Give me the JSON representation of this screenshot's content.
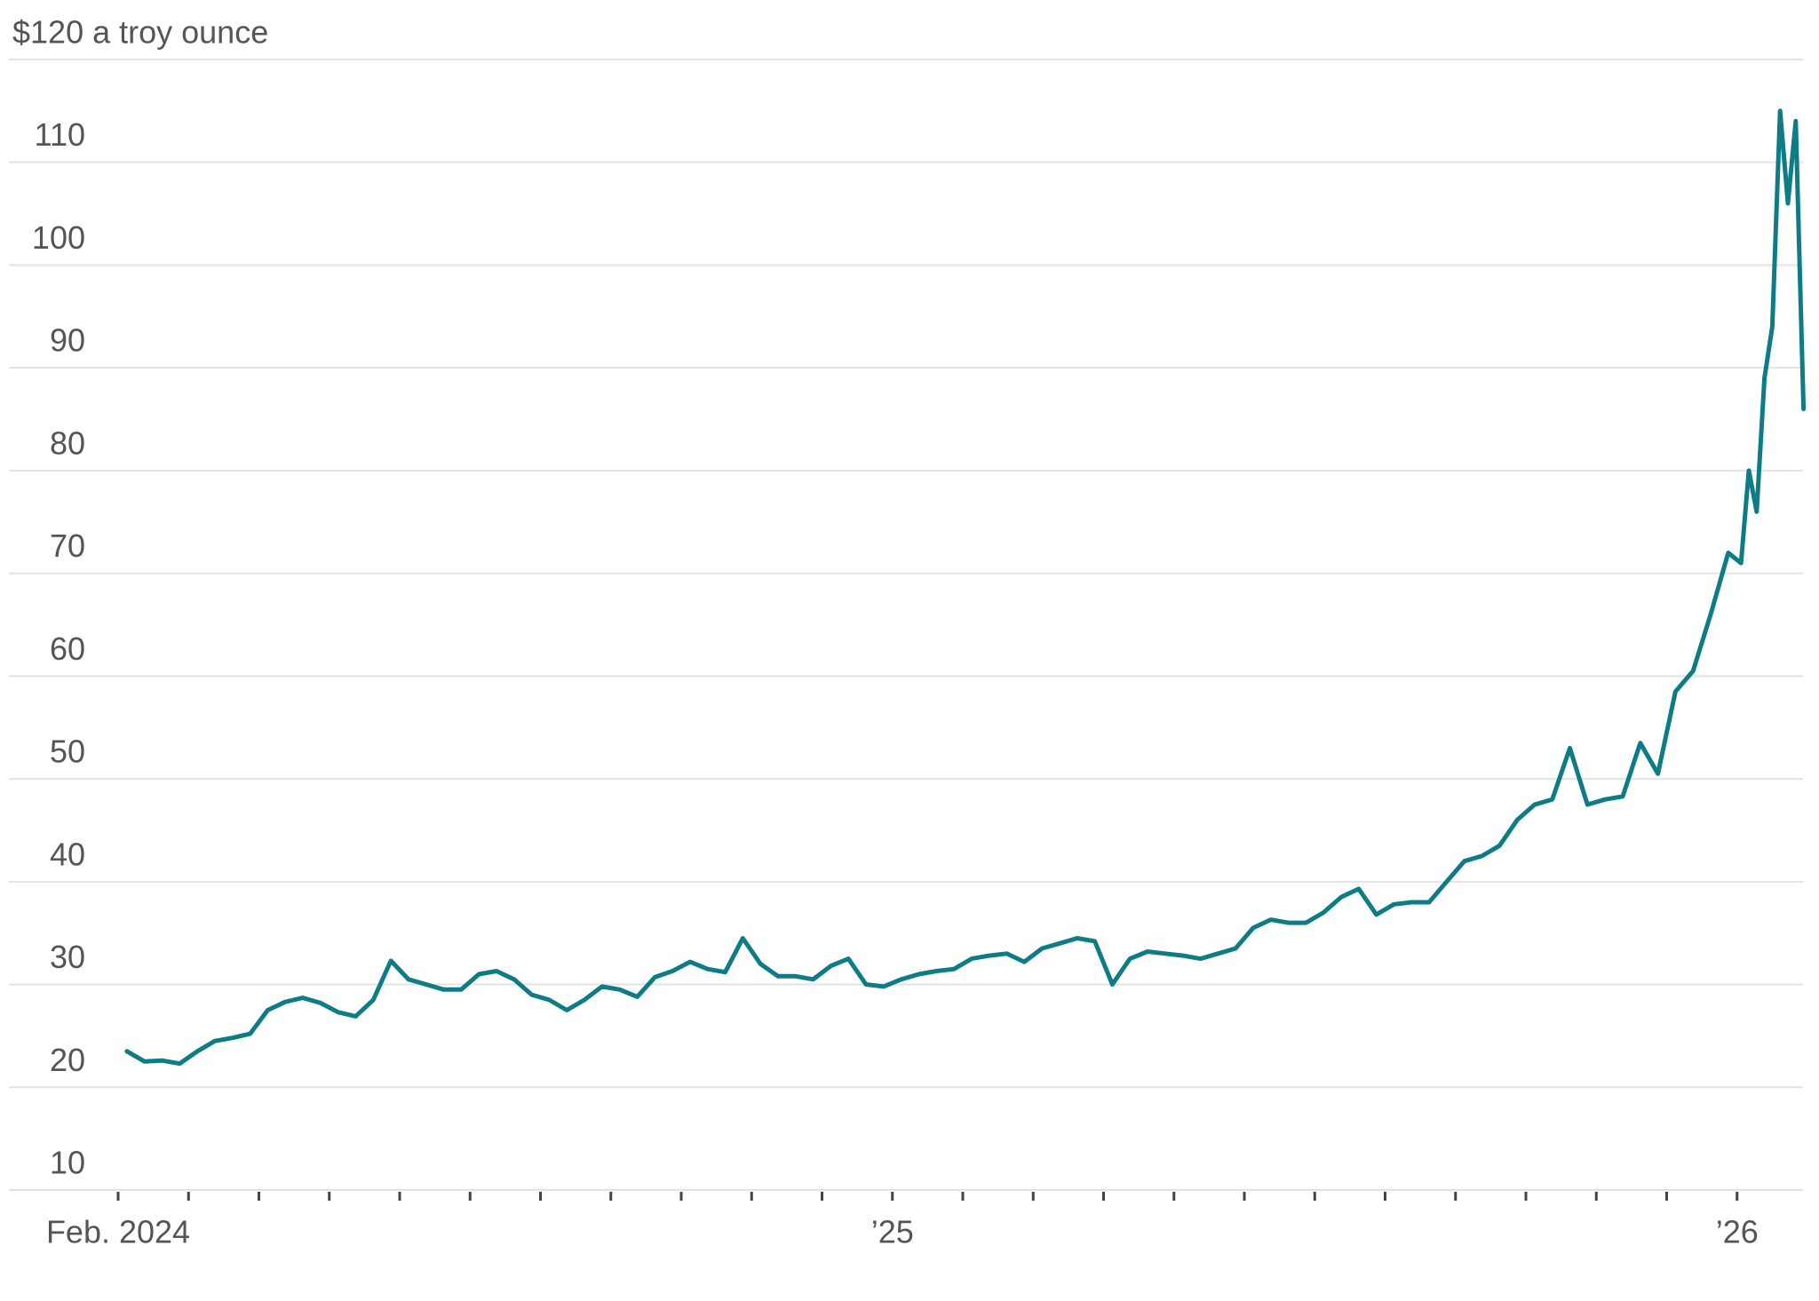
{
  "chart_data": {
    "type": "line",
    "x": [
      "2024-02",
      "2024-02",
      "2024-02",
      "2024-02",
      "2024-03",
      "2024-03",
      "2024-03",
      "2024-03",
      "2024-04",
      "2024-04",
      "2024-04",
      "2024-04",
      "2024-05",
      "2024-05",
      "2024-05",
      "2024-05",
      "2024-06",
      "2024-06",
      "2024-06",
      "2024-06",
      "2024-07",
      "2024-07",
      "2024-07",
      "2024-07",
      "2024-08",
      "2024-08",
      "2024-08",
      "2024-08",
      "2024-09",
      "2024-09",
      "2024-09",
      "2024-09",
      "2024-10",
      "2024-10",
      "2024-10",
      "2024-10",
      "2024-11",
      "2024-11",
      "2024-11",
      "2024-11",
      "2024-12",
      "2024-12",
      "2024-12",
      "2024-12",
      "2025-01",
      "2025-01",
      "2025-01",
      "2025-01",
      "2025-02",
      "2025-02",
      "2025-02",
      "2025-02",
      "2025-03",
      "2025-03",
      "2025-03",
      "2025-03",
      "2025-04",
      "2025-04",
      "2025-04",
      "2025-04",
      "2025-05",
      "2025-05",
      "2025-05",
      "2025-05",
      "2025-06",
      "2025-06",
      "2025-06",
      "2025-06",
      "2025-07",
      "2025-07",
      "2025-07",
      "2025-07",
      "2025-08",
      "2025-08",
      "2025-08",
      "2025-08",
      "2025-09",
      "2025-09",
      "2025-09",
      "2025-09",
      "2025-10",
      "2025-10",
      "2025-10",
      "2025-10",
      "2025-11",
      "2025-11",
      "2025-11",
      "2025-11",
      "2025-12",
      "2025-12",
      "2025-12",
      "2025-12",
      "2026-01",
      "2026-01",
      "2026-01",
      "2026-01",
      "2026-01",
      "2026-01",
      "2026-01",
      "2026-01",
      "2026-01"
    ],
    "series": [
      {
        "color": "#0e7c86",
        "values": [
          23.5,
          22.5,
          22.6,
          22.3,
          23.5,
          24.5,
          24.8,
          25.2,
          27.5,
          28.3,
          28.7,
          28.2,
          27.3,
          26.9,
          28.5,
          32.3,
          30.5,
          30,
          29.5,
          29.5,
          31,
          31.3,
          30.5,
          29,
          28.5,
          27.5,
          28.5,
          29.8,
          29.5,
          28.8,
          30.7,
          31.3,
          32.2,
          31.5,
          31.2,
          34.5,
          32,
          30.8,
          30.8,
          30.5,
          31.8,
          32.5,
          30,
          29.8,
          30.5,
          31,
          31.3,
          31.5,
          32.5,
          32.8,
          33,
          32.2,
          33.5,
          34,
          34.5,
          34.2,
          30,
          32.5,
          33.2,
          33,
          32.8,
          32.5,
          33,
          33.5,
          35.5,
          36.3,
          36,
          36,
          37,
          38.5,
          39.3,
          36.8,
          37.8,
          38,
          38,
          40,
          42,
          42.5,
          43.5,
          46,
          47.5,
          48,
          53,
          47.5,
          48,
          48.3,
          53.5,
          50.5,
          58.5,
          60.5,
          66,
          72,
          71,
          80,
          76,
          89,
          94,
          115,
          106,
          114,
          86
        ]
      }
    ],
    "xlim": [
      "2024-02",
      "2026-02"
    ],
    "xticks": [
      {
        "value": "2024-02",
        "label": "Feb. 2024"
      },
      "2024-03",
      "2024-04",
      "2024-05",
      "2024-06",
      "2024-07",
      "2024-08",
      "2024-09",
      "2024-10",
      "2024-11",
      "2024-12",
      {
        "value": "2025-01",
        "label": "’25"
      },
      "2025-02",
      "2025-03",
      "2025-04",
      "2025-05",
      "2025-06",
      "2025-07",
      "2025-08",
      "2025-09",
      "2025-10",
      "2025-11",
      "2025-12",
      {
        "value": "2026-01",
        "label": "’26"
      }
    ],
    "ylim": [
      10,
      120
    ],
    "yticks": [
      10,
      20,
      30,
      40,
      50,
      60,
      70,
      80,
      90,
      100,
      110,
      {
        "value": 120,
        "label": "$120 a troy ounce"
      }
    ],
    "grid": true
  }
}
